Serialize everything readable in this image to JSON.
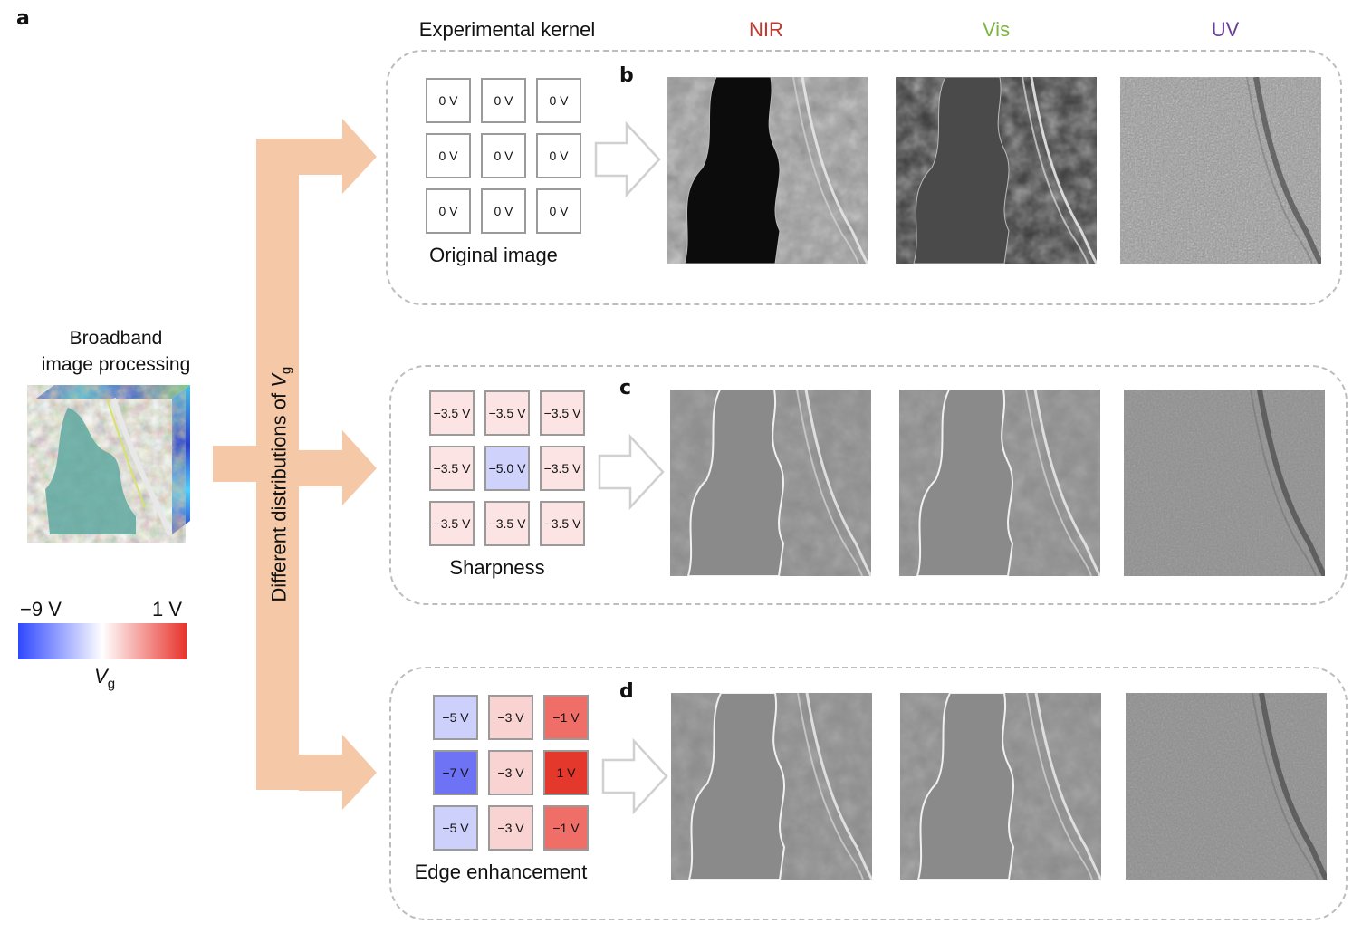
{
  "figure": {
    "panel_a_label": "a",
    "left_title_line1": "Broadband",
    "left_title_line2": "image processing",
    "arrow_label_prefix": "Different distributions of ",
    "arrow_label_var": "V",
    "arrow_label_sub": "g",
    "colorbar": {
      "min_label": "−9 V",
      "max_label": "1 V",
      "var": "V",
      "sub": "g",
      "colors": {
        "low": "#2f47ff",
        "mid": "#ffffff",
        "high": "#e8332c"
      }
    },
    "column_headers": {
      "kernel": "Experimental kernel",
      "nir": "NIR",
      "vis": "Vis",
      "uv": "UV"
    },
    "header_colors": {
      "nir": "#c0392b",
      "vis": "#7cb342",
      "uv": "#6a3d9a"
    },
    "arrow_color": "#f5c9a8",
    "panels": [
      {
        "letter": "b",
        "kernel_label": "Original image",
        "cells": [
          {
            "text": "0 V",
            "color": "#ffffff"
          },
          {
            "text": "0 V",
            "color": "#ffffff"
          },
          {
            "text": "0 V",
            "color": "#ffffff"
          },
          {
            "text": "0 V",
            "color": "#ffffff"
          },
          {
            "text": "0 V",
            "color": "#ffffff"
          },
          {
            "text": "0 V",
            "color": "#ffffff"
          },
          {
            "text": "0 V",
            "color": "#ffffff"
          },
          {
            "text": "0 V",
            "color": "#ffffff"
          },
          {
            "text": "0 V",
            "color": "#ffffff"
          }
        ]
      },
      {
        "letter": "c",
        "kernel_label": "Sharpness",
        "cells": [
          {
            "text": "−3.5 V",
            "color": "#fde4e4"
          },
          {
            "text": "−3.5 V",
            "color": "#fde4e4"
          },
          {
            "text": "−3.5 V",
            "color": "#fde4e4"
          },
          {
            "text": "−3.5 V",
            "color": "#fde4e4"
          },
          {
            "text": "−5.0 V",
            "color": "#cfd2fb"
          },
          {
            "text": "−3.5 V",
            "color": "#fde4e4"
          },
          {
            "text": "−3.5 V",
            "color": "#fde4e4"
          },
          {
            "text": "−3.5 V",
            "color": "#fde4e4"
          },
          {
            "text": "−3.5 V",
            "color": "#fde4e4"
          }
        ]
      },
      {
        "letter": "d",
        "kernel_label": "Edge enhancement",
        "cells": [
          {
            "text": "−5 V",
            "color": "#ccd0fb"
          },
          {
            "text": "−3 V",
            "color": "#f9d2d2"
          },
          {
            "text": "−1 V",
            "color": "#ef6e68"
          },
          {
            "text": "−7 V",
            "color": "#6e72f4"
          },
          {
            "text": "−3 V",
            "color": "#f9d2d2"
          },
          {
            "text": "1 V",
            "color": "#e5382c"
          },
          {
            "text": "−5 V",
            "color": "#ccd0fb"
          },
          {
            "text": "−3 V",
            "color": "#f9d2d2"
          },
          {
            "text": "−1 V",
            "color": "#ef6e68"
          }
        ]
      }
    ]
  }
}
